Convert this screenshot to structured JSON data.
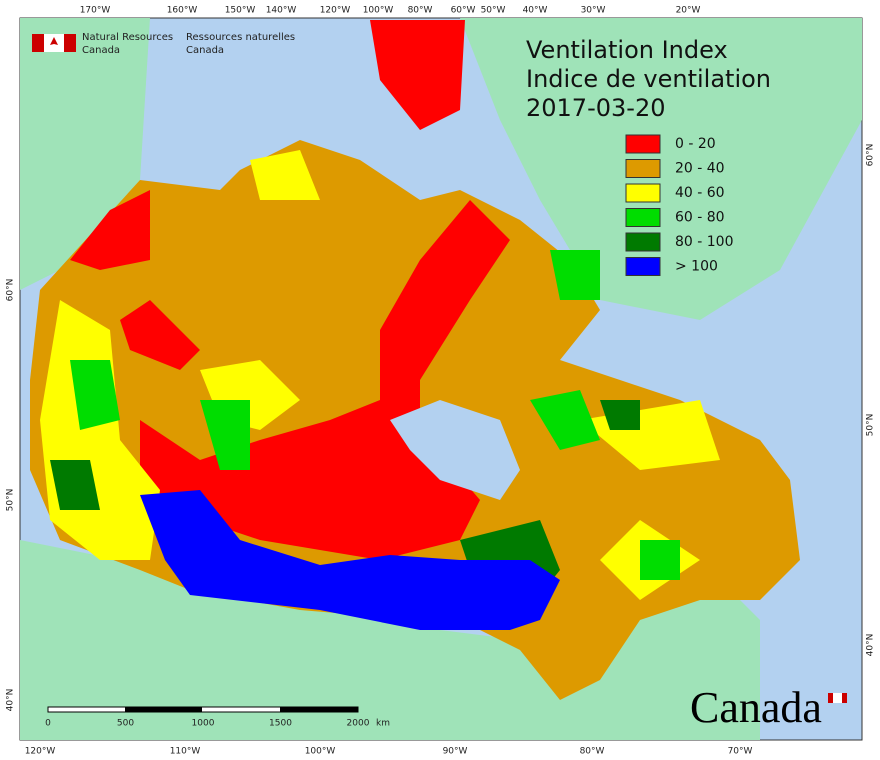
{
  "header": {
    "agency_en": [
      "Natural Resources",
      "Canada"
    ],
    "agency_fr": [
      "Ressources naturelles",
      "Canada"
    ]
  },
  "title": [
    "Ventilation Index",
    "Indice de ventilation",
    "2017-03-20"
  ],
  "legend": [
    {
      "label": "0 - 20",
      "color": "#ff0000"
    },
    {
      "label": "20 - 40",
      "color": "#dd9a00"
    },
    {
      "label": "40 - 60",
      "color": "#ffff00"
    },
    {
      "label": "60 - 80",
      "color": "#00dd00"
    },
    {
      "label": "80 - 100",
      "color": "#007a00"
    },
    {
      "label": "> 100",
      "color": "#0000ff"
    }
  ],
  "graticule": {
    "top": [
      "170°W",
      "160°W",
      "150°W",
      "140°W",
      "120°W",
      "100°W",
      "80°W",
      "60°W",
      "50°W",
      "40°W",
      "30°W",
      "20°W"
    ],
    "bottom": [
      "120°W",
      "110°W",
      "100°W",
      "90°W",
      "80°W",
      "70°W"
    ],
    "left": [
      "60°N",
      "50°N",
      "40°N"
    ],
    "right": [
      "60°N",
      "50°N",
      "40°N"
    ]
  },
  "scale_bar": {
    "labels": [
      "0",
      "500",
      "1000",
      "1500",
      "2000"
    ],
    "unit": "km"
  },
  "wordmark": "Canada"
}
